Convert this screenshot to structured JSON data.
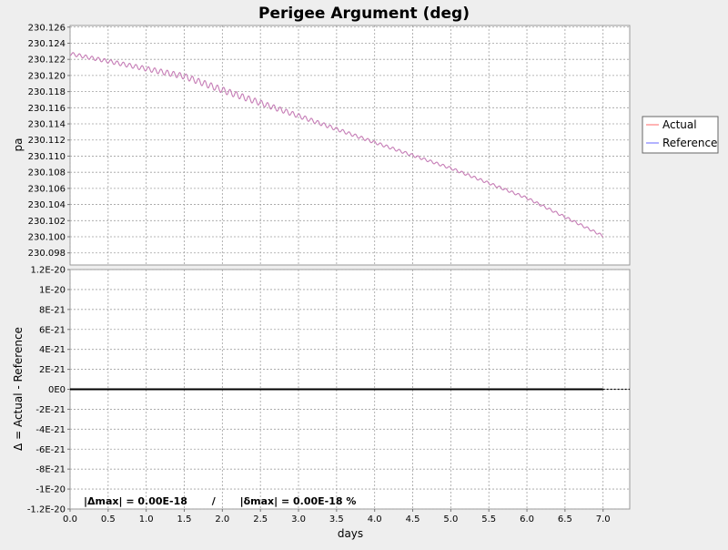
{
  "chart_data": {
    "type": "line",
    "title": "Perigee Argument (deg)",
    "xlabel": "days",
    "xlim": [
      0.0,
      7.35
    ],
    "x_ticks": [
      "0.0",
      "0.5",
      "1.0",
      "1.5",
      "2.0",
      "2.5",
      "3.0",
      "3.5",
      "4.0",
      "4.5",
      "5.0",
      "5.5",
      "6.0",
      "6.5",
      "7.0"
    ],
    "x_tick_values": [
      0.0,
      0.5,
      1.0,
      1.5,
      2.0,
      2.5,
      3.0,
      3.5,
      4.0,
      4.5,
      5.0,
      5.5,
      6.0,
      6.5,
      7.0
    ],
    "grid": true,
    "legend_position": "right",
    "top_panel": {
      "ylabel": "pa",
      "ylim": [
        230.0965,
        230.1262
      ],
      "y_ticks": [
        "230.126",
        "230.124",
        "230.122",
        "230.120",
        "230.118",
        "230.116",
        "230.114",
        "230.112",
        "230.110",
        "230.108",
        "230.106",
        "230.104",
        "230.102",
        "230.100",
        "230.098"
      ],
      "y_tick_values": [
        230.126,
        230.124,
        230.122,
        230.12,
        230.118,
        230.116,
        230.114,
        230.112,
        230.11,
        230.108,
        230.106,
        230.104,
        230.102,
        230.1,
        230.098
      ],
      "series": [
        {
          "name": "Actual",
          "color": "#ff8080",
          "x_range": [
            0.0,
            7.0
          ],
          "trend": [
            [
              0.0,
              230.1227
            ],
            [
              1.5,
              230.1199
            ],
            [
              2.0,
              230.1182
            ],
            [
              3.0,
              230.115
            ],
            [
              4.0,
              230.1117
            ],
            [
              5.0,
              230.1085
            ],
            [
              6.0,
              230.1048
            ],
            [
              7.0,
              230.1001
            ]
          ],
          "oscillation_amplitude_start": 0.0008,
          "oscillation_amplitude_peak": 0.0012,
          "oscillation_cycles": 85
        },
        {
          "name": "Reference",
          "color": "#8080ff",
          "x_range": [
            0.0,
            7.0
          ],
          "trend": [
            [
              0.0,
              230.1227
            ],
            [
              1.5,
              230.1199
            ],
            [
              2.0,
              230.1182
            ],
            [
              3.0,
              230.115
            ],
            [
              4.0,
              230.1117
            ],
            [
              5.0,
              230.1085
            ],
            [
              6.0,
              230.1048
            ],
            [
              7.0,
              230.1001
            ]
          ],
          "oscillation_amplitude_start": 0.0008,
          "oscillation_amplitude_peak": 0.0012,
          "oscillation_cycles": 85
        }
      ]
    },
    "bottom_panel": {
      "ylabel": "Δ = Actual - Reference",
      "ylim": [
        -1.2e-20,
        1.2e-20
      ],
      "y_ticks": [
        "1.2E-20",
        "1E-20",
        "8E-21",
        "6E-21",
        "4E-21",
        "2E-21",
        "0E0",
        "-2E-21",
        "-4E-21",
        "-6E-21",
        "-8E-21",
        "-1E-20",
        "-1.2E-20"
      ],
      "y_tick_values": [
        1.2e-20,
        1e-20,
        8e-21,
        6e-21,
        4e-21,
        2e-21,
        0,
        -2e-21,
        -4e-21,
        -6e-21,
        -8e-21,
        -1e-20,
        -1.2e-20
      ],
      "series": [
        {
          "name": "Delta",
          "color": "#000000",
          "x": [
            0.0,
            7.0
          ],
          "y": [
            0,
            0
          ]
        }
      ],
      "annotation": "|Δmax| = 0.00E-18       /       |δmax| = 0.00E-18 %"
    }
  }
}
